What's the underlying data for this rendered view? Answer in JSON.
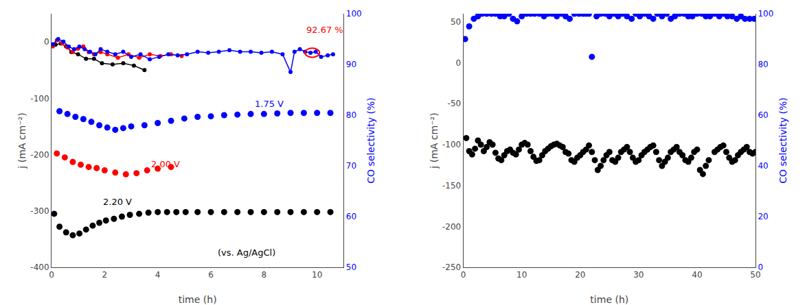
{
  "chart_data": [
    {
      "type": "line",
      "x_label": "time (h)",
      "y_label": "j (mA cm⁻²)",
      "y2_label": "CO selectivity (%)",
      "xlim": [
        0,
        11
      ],
      "xticks": [
        0,
        2,
        4,
        6,
        8,
        10
      ],
      "ylim": [
        -400,
        50
      ],
      "yticks": [
        -400,
        -300,
        -200,
        -100,
        0
      ],
      "y2lim": [
        50,
        100
      ],
      "y2ticks": [
        50,
        60,
        70,
        80,
        90,
        100
      ],
      "grid": false,
      "legend": false,
      "series": [
        {
          "type": "line",
          "marker": "circle",
          "line_style": "solid",
          "color": "#000000",
          "x": [
            0.15,
            0.35,
            0.55,
            0.75,
            1.0,
            1.3,
            1.6,
            1.9,
            2.3,
            2.7,
            3.1,
            3.5
          ],
          "values": [
            -5,
            -3,
            -8,
            -18,
            -22,
            -30,
            -30,
            -38,
            -40,
            -38,
            -42,
            -50
          ]
        },
        {
          "type": "line",
          "marker": "circle",
          "line_style": "solid",
          "color": "#ff0000",
          "x": [
            0.05,
            0.2,
            0.4,
            0.6,
            0.8,
            1.0,
            1.2,
            1.4,
            1.6,
            1.85,
            2.1,
            2.5,
            2.9,
            3.3,
            3.7,
            4.1,
            4.5,
            4.9
          ],
          "values": [
            -8,
            3,
            -3,
            -10,
            -18,
            -12,
            -8,
            -18,
            -22,
            -18,
            -22,
            -28,
            -22,
            -28,
            -22,
            -25,
            -22,
            -25
          ]
        },
        {
          "type": "line",
          "marker": "circle",
          "line_style": "solid",
          "color": "#0000ff",
          "axis": "y2",
          "x": [
            0.05,
            0.25,
            0.45,
            0.65,
            0.85,
            1.05,
            1.25,
            1.45,
            1.65,
            1.85,
            2.1,
            2.4,
            2.7,
            3.0,
            3.35,
            3.7,
            4.05,
            4.4,
            4.75,
            5.1,
            5.5,
            5.9,
            6.3,
            6.7,
            7.1,
            7.5,
            7.9,
            8.3,
            8.7,
            9.0,
            9.15,
            9.35,
            9.55,
            9.75,
            9.95,
            10.15,
            10.4,
            10.6
          ],
          "values": [
            94,
            95,
            94.5,
            93.5,
            93,
            93.5,
            93,
            92.5,
            92,
            93,
            92.5,
            92,
            92.5,
            91.5,
            92,
            91,
            91.5,
            92,
            91.8,
            92,
            92.5,
            92.3,
            92.5,
            92.8,
            92.5,
            92.5,
            92.3,
            92.5,
            92,
            88.5,
            92.5,
            93,
            92.5,
            92.3,
            92.5,
            91.5,
            91.8,
            92
          ]
        },
        {
          "type": "scatter",
          "marker": "circle",
          "color": "#0000ff",
          "x": [
            0.3,
            0.6,
            0.9,
            1.2,
            1.5,
            1.8,
            2.1,
            2.4,
            2.7,
            3.0,
            3.5,
            4.0,
            4.5,
            5.0,
            5.5,
            6.0,
            6.5,
            7.0,
            7.5,
            8.0,
            8.5,
            9.0,
            9.5,
            10.0,
            10.5
          ],
          "values": [
            -123,
            -128,
            -133,
            -137,
            -142,
            -148,
            -152,
            -156,
            -153,
            -150,
            -148,
            -144,
            -140,
            -136,
            -133,
            -132,
            -130,
            -129,
            -128,
            -128,
            -127,
            -126,
            -126,
            -126,
            -126
          ]
        },
        {
          "type": "scatter",
          "marker": "circle",
          "color": "#ff0000",
          "x": [
            0.2,
            0.5,
            0.8,
            1.1,
            1.4,
            1.7,
            2.0,
            2.4,
            2.8,
            3.2,
            3.6,
            4.0,
            4.5
          ],
          "values": [
            -198,
            -205,
            -213,
            -218,
            -222,
            -224,
            -228,
            -232,
            -235,
            -233,
            -228,
            -225,
            -222
          ]
        },
        {
          "type": "scatter",
          "marker": "circle",
          "color": "#000000",
          "x": [
            0.1,
            0.3,
            0.55,
            0.8,
            1.05,
            1.3,
            1.55,
            1.8,
            2.05,
            2.35,
            2.65,
            2.95,
            3.3,
            3.65,
            4.0,
            4.35,
            4.7,
            5.05,
            5.5,
            6.0,
            6.5,
            7.0,
            7.5,
            8.0,
            8.5,
            9.0,
            9.5,
            10.0,
            10.5
          ],
          "values": [
            -305,
            -328,
            -338,
            -343,
            -340,
            -333,
            -326,
            -321,
            -317,
            -314,
            -310,
            -307,
            -305,
            -303,
            -302,
            -302,
            -302,
            -302,
            -302,
            -302,
            -302,
            -302,
            -302,
            -302,
            -302,
            -302,
            -302,
            -302,
            -302
          ]
        }
      ],
      "annotations": [
        {
          "text": "1.75 V",
          "x": 7.6,
          "y": -122,
          "color": "#0000ff"
        },
        {
          "text": "2.00 V",
          "x": 3.7,
          "y": -228,
          "color": "#ff0000"
        },
        {
          "text": "2.20 V",
          "x": 1.9,
          "y": -295,
          "color": "#000000"
        },
        {
          "text": "(vs. Ag/AgCl)",
          "x": 6.2,
          "y": -385,
          "color": "#000000"
        },
        {
          "text": "92.67 %",
          "x": 9.55,
          "y": 95.5,
          "axis": "y2",
          "color": "#ff0000"
        }
      ],
      "shapes": [
        {
          "type": "circle",
          "x": 9.82,
          "y": 92.3,
          "axis": "y2",
          "color": "#ff0000"
        }
      ]
    },
    {
      "type": "scatter",
      "x_label": "time (h)",
      "y_label": "j (mA cm⁻²)",
      "y2_label": "CO selectivity (%)",
      "xlim": [
        0,
        50
      ],
      "xticks": [
        0,
        10,
        20,
        30,
        40,
        50
      ],
      "ylim": [
        -250,
        60
      ],
      "yticks": [
        -250,
        -200,
        -150,
        -100,
        -50,
        0,
        50
      ],
      "y2lim": [
        0,
        100
      ],
      "y2ticks": [
        0,
        20,
        40,
        60,
        80,
        100
      ],
      "grid": false,
      "legend": false,
      "series": [
        {
          "type": "scatter",
          "marker": "circle",
          "color": "#000000",
          "x": [
            0.5,
            1.0,
            1.5,
            2.0,
            2.5,
            3.0,
            3.5,
            4.0,
            4.5,
            5.0,
            5.5,
            6.0,
            6.5,
            7.0,
            7.5,
            8.0,
            8.5,
            9.0,
            9.5,
            10.0,
            10.5,
            11.0,
            11.5,
            12.0,
            12.5,
            13.0,
            13.5,
            14.0,
            14.5,
            15.0,
            15.5,
            16.0,
            16.5,
            17.0,
            17.5,
            18.0,
            18.5,
            19.0,
            19.5,
            20.0,
            20.5,
            21.0,
            21.5,
            22.0,
            22.5,
            23.0,
            23.5,
            24.0,
            24.5,
            25.0,
            25.5,
            26.0,
            26.5,
            27.0,
            27.5,
            28.0,
            28.5,
            29.0,
            29.5,
            30.0,
            30.5,
            31.0,
            31.5,
            32.0,
            32.5,
            33.0,
            33.5,
            34.0,
            34.5,
            35.0,
            35.5,
            36.0,
            36.5,
            37.0,
            37.5,
            38.0,
            38.5,
            39.0,
            39.5,
            40.0,
            40.5,
            41.0,
            41.5,
            42.0,
            43.0,
            43.5,
            44.0,
            44.5,
            45.0,
            45.5,
            46.0,
            46.5,
            47.0,
            47.5,
            48.0,
            48.5,
            49.0,
            49.5,
            50.0
          ],
          "values": [
            -92,
            -108,
            -112,
            -105,
            -95,
            -100,
            -108,
            -103,
            -97,
            -100,
            -110,
            -117,
            -119,
            -113,
            -108,
            -106,
            -110,
            -112,
            -106,
            -100,
            -98,
            -100,
            -108,
            -115,
            -120,
            -119,
            -113,
            -108,
            -105,
            -102,
            -100,
            -99,
            -101,
            -103,
            -109,
            -111,
            -119,
            -121,
            -116,
            -113,
            -109,
            -106,
            -101,
            -109,
            -119,
            -131,
            -126,
            -119,
            -113,
            -109,
            -119,
            -121,
            -116,
            -109,
            -106,
            -103,
            -109,
            -116,
            -121,
            -119,
            -113,
            -109,
            -106,
            -103,
            -101,
            -109,
            -119,
            -126,
            -121,
            -116,
            -109,
            -106,
            -103,
            -109,
            -113,
            -119,
            -121,
            -116,
            -109,
            -106,
            -131,
            -136,
            -126,
            -119,
            -109,
            -106,
            -103,
            -101,
            -109,
            -116,
            -121,
            -119,
            -113,
            -109,
            -106,
            -103,
            -109,
            -111,
            -109
          ]
        },
        {
          "type": "scatter",
          "marker": "circle",
          "color": "#0000ff",
          "axis": "y2",
          "x": [
            0.3,
            1.0,
            1.8,
            2.5,
            3.2,
            4.0,
            4.8,
            5.5,
            6.3,
            7.0,
            7.8,
            8.5,
            9.2,
            10.0,
            10.8,
            11.5,
            12.2,
            13.0,
            13.8,
            14.5,
            15.2,
            16.0,
            16.8,
            17.5,
            18.2,
            19.0,
            19.8,
            20.5,
            21.0,
            21.5,
            22.0,
            22.8,
            23.5,
            24.3,
            25.0,
            25.8,
            26.5,
            27.2,
            28.0,
            28.8,
            29.5,
            30.2,
            31.0,
            31.8,
            32.5,
            33.2,
            34.0,
            34.8,
            35.5,
            36.2,
            37.0,
            37.8,
            38.5,
            39.2,
            40.0,
            40.8,
            41.5,
            42.2,
            43.0,
            43.8,
            44.5,
            45.2,
            46.0,
            46.8,
            47.5,
            48.2,
            49.0,
            49.8
          ],
          "values": [
            90,
            95,
            98,
            99,
            100,
            100,
            100,
            100,
            99,
            99,
            100,
            98,
            97,
            99,
            100,
            100,
            100,
            100,
            99,
            100,
            100,
            99,
            100,
            99,
            98,
            100,
            100,
            100,
            100,
            100,
            83,
            99,
            100,
            100,
            99,
            100,
            99,
            100,
            99,
            98,
            100,
            99,
            100,
            99,
            98,
            100,
            99,
            100,
            98,
            99,
            100,
            100,
            99,
            99,
            100,
            100,
            99,
            99,
            100,
            99,
            100,
            99,
            99,
            98,
            99,
            98,
            98,
            98
          ]
        }
      ]
    }
  ]
}
